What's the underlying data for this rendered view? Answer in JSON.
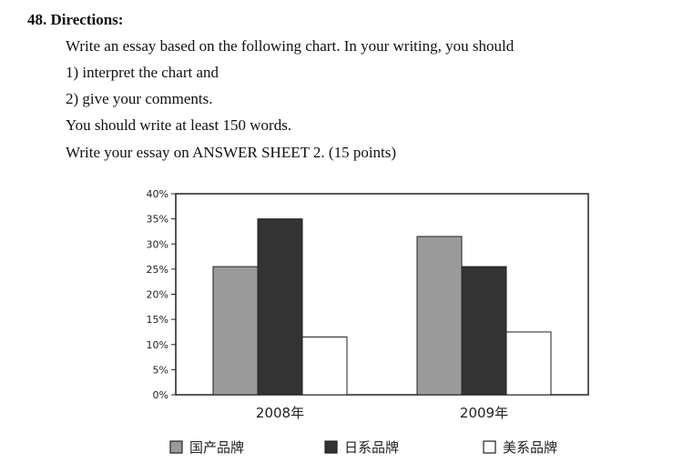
{
  "question": {
    "heading": "48. Directions:",
    "lines": [
      "Write an essay based on the following chart. In your writing, you should",
      "1) interpret the chart and",
      "2) give your comments.",
      "You should write at least 150 words.",
      "Write your essay on ANSWER SHEET 2. (15 points)"
    ]
  },
  "chart_data": {
    "type": "bar",
    "categories": [
      "2008年",
      "2009年"
    ],
    "series": [
      {
        "name": "国产品牌",
        "values": [
          25.5,
          31.5
        ],
        "color": "#9a9a9a"
      },
      {
        "name": "日系品牌",
        "values": [
          35,
          25.5
        ],
        "color": "#333333"
      },
      {
        "name": "美系品牌",
        "values": [
          11.5,
          12.5
        ],
        "color": "#ffffff"
      }
    ],
    "ylim": [
      0,
      40
    ],
    "yticks": [
      "0%",
      "5%",
      "10%",
      "15%",
      "20%",
      "25%",
      "30%",
      "35%",
      "40%"
    ],
    "grid": false,
    "legend_position": "bottom"
  }
}
